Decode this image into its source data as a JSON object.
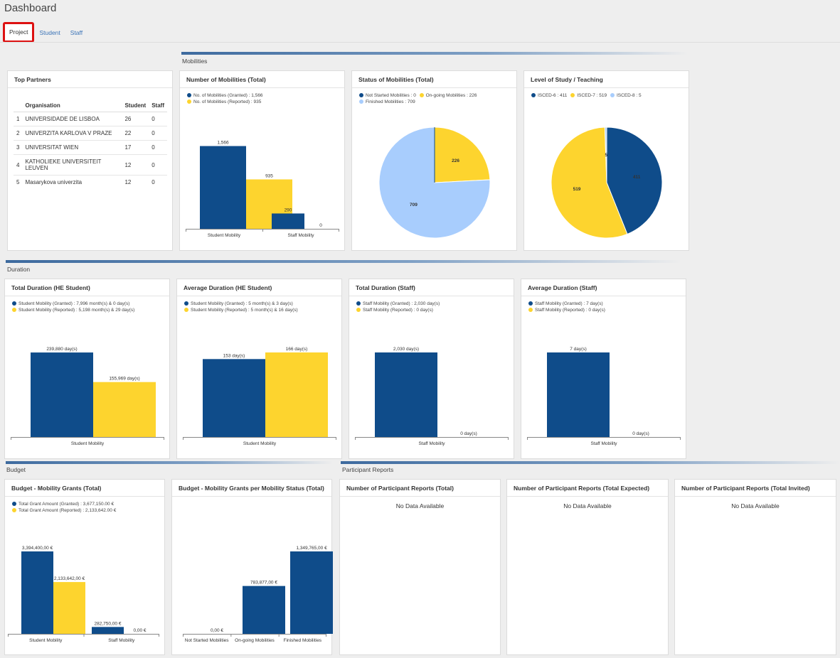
{
  "page": {
    "title": "Dashboard"
  },
  "tabs": [
    {
      "label": "Project",
      "active": true
    },
    {
      "label": "Student",
      "active": false
    },
    {
      "label": "Staff",
      "active": false
    }
  ],
  "sections": {
    "mobilities": "Mobilities",
    "duration": "Duration",
    "budget": "Budget",
    "participant_reports": "Participant Reports"
  },
  "colors": {
    "granted": "#0f4c8a",
    "reported": "#fdd42e",
    "light": "#a8cdfd"
  },
  "top_partners": {
    "title": "Top Partners",
    "columns": [
      "",
      "Organisation",
      "Student",
      "Staff"
    ],
    "rows": [
      [
        "1",
        "UNIVERSIDADE DE LISBOA",
        "26",
        "0"
      ],
      [
        "2",
        "UNIVERZITA KARLOVA V PRAZE",
        "22",
        "0"
      ],
      [
        "3",
        "UNIVERSITAT WIEN",
        "17",
        "0"
      ],
      [
        "4",
        "KATHOLIEKE UNIVERSITEIT LEUVEN",
        "12",
        "0"
      ],
      [
        "5",
        "Masarykova univerzita",
        "12",
        "0"
      ]
    ]
  },
  "charts": {
    "mob_total": {
      "title": "Number of Mobilities (Total)",
      "legend": [
        "No. of Mobilities (Granted) : 1,566",
        "No. of Mobilities (Reported) : 935"
      ]
    },
    "mob_status": {
      "title": "Status of Mobilities (Total)",
      "legend": [
        "Not Started Mobilities : 0",
        "On-going Mobilities : 226",
        "Finished Mobilities : 709"
      ]
    },
    "level": {
      "title": "Level of Study / Teaching",
      "legend": [
        "ISCED-6 : 411",
        "ISCED-7 : 519",
        "ISCED-8 : 5"
      ]
    },
    "dur_he_total": {
      "title": "Total Duration (HE Student)",
      "legend": [
        "Student Mobility (Granted) : 7,996 month(s) & 0 day(s)",
        "Student Mobility (Reported) : 5,198 month(s) & 29 day(s)"
      ]
    },
    "dur_he_avg": {
      "title": "Average Duration (HE Student)",
      "legend": [
        "Student Mobility (Granted) : 5 month(s) & 3 day(s)",
        "Student Mobility (Reported) : 5 month(s) & 16 day(s)"
      ]
    },
    "dur_staff_total": {
      "title": "Total Duration (Staff)",
      "legend": [
        "Staff Mobility (Granted) : 2,030 day(s)",
        "Staff Mobility (Reported) : 0 day(s)"
      ]
    },
    "dur_staff_avg": {
      "title": "Average Duration (Staff)",
      "legend": [
        "Staff Mobility (Granted) : 7 day(s)",
        "Staff Mobility (Reported) : 0 day(s)"
      ]
    },
    "budget_total": {
      "title": "Budget - Mobility Grants (Total)",
      "legend": [
        "Total Grant Amount (Granted) : 3,677,150.00 €",
        "Total Grant Amount (Reported) : 2,133,642.00 €"
      ]
    },
    "budget_status": {
      "title": "Budget - Mobility Grants per Mobility Status (Total)"
    },
    "pr_total": {
      "title": "Number of Participant Reports (Total)",
      "empty": "No Data Available"
    },
    "pr_expected": {
      "title": "Number of Participant Reports (Total Expected)",
      "empty": "No Data Available"
    },
    "pr_invited": {
      "title": "Number of Participant Reports (Total Invited)",
      "empty": "No Data Available"
    }
  },
  "chart_data": [
    {
      "id": "mob_total",
      "type": "bar",
      "categories": [
        "Student Mobility",
        "Staff Mobility"
      ],
      "series": [
        {
          "name": "Granted",
          "values": [
            1566,
            290
          ],
          "labels": [
            "1,566",
            "290"
          ]
        },
        {
          "name": "Reported",
          "values": [
            935,
            0
          ],
          "labels": [
            "935",
            "0"
          ]
        }
      ],
      "ylim": [
        0,
        1600
      ]
    },
    {
      "id": "mob_status",
      "type": "pie",
      "slices": [
        {
          "label": "226",
          "value": 226,
          "color": "#fdd42e"
        },
        {
          "label": "709",
          "value": 709,
          "color": "#a8cdfd"
        },
        {
          "label": "",
          "value": 0,
          "color": "#0f4c8a"
        }
      ]
    },
    {
      "id": "level",
      "type": "pie",
      "slices": [
        {
          "label": "411",
          "value": 411,
          "color": "#0f4c8a"
        },
        {
          "label": "519",
          "value": 519,
          "color": "#fdd42e"
        },
        {
          "label": "5",
          "value": 5,
          "color": "#a8cdfd"
        }
      ]
    },
    {
      "id": "dur_he_total",
      "type": "bar",
      "categories": [
        "Student Mobility"
      ],
      "series": [
        {
          "name": "Granted",
          "values": [
            239880
          ],
          "labels": [
            "239,880 day(s)"
          ]
        },
        {
          "name": "Reported",
          "values": [
            155969
          ],
          "labels": [
            "155,969 day(s)"
          ]
        }
      ],
      "ylim": [
        0,
        240000
      ]
    },
    {
      "id": "dur_he_avg",
      "type": "bar",
      "categories": [
        "Student Mobility"
      ],
      "series": [
        {
          "name": "Granted",
          "values": [
            153
          ],
          "labels": [
            "153 day(s)"
          ]
        },
        {
          "name": "Reported",
          "values": [
            166
          ],
          "labels": [
            "166 day(s)"
          ]
        }
      ],
      "ylim": [
        0,
        166
      ]
    },
    {
      "id": "dur_staff_total",
      "type": "bar",
      "categories": [
        "Staff Mobility"
      ],
      "series": [
        {
          "name": "Granted",
          "values": [
            2030
          ],
          "labels": [
            "2,030 day(s)"
          ]
        },
        {
          "name": "Reported",
          "values": [
            0
          ],
          "labels": [
            "0 day(s)"
          ]
        }
      ],
      "ylim": [
        0,
        2030
      ]
    },
    {
      "id": "dur_staff_avg",
      "type": "bar",
      "categories": [
        "Staff Mobility"
      ],
      "series": [
        {
          "name": "Granted",
          "values": [
            7
          ],
          "labels": [
            "7 day(s)"
          ]
        },
        {
          "name": "Reported",
          "values": [
            0
          ],
          "labels": [
            "0 day(s)"
          ]
        }
      ],
      "ylim": [
        0,
        7
      ]
    },
    {
      "id": "budget_total",
      "type": "bar",
      "categories": [
        "Student Mobility",
        "Staff Mobility"
      ],
      "series": [
        {
          "name": "Granted",
          "values": [
            3394400,
            282750
          ],
          "labels": [
            "3,394,400,00 €",
            "282,750,00 €"
          ]
        },
        {
          "name": "Reported",
          "values": [
            2133642,
            0
          ],
          "labels": [
            "2,133,642,00 €",
            "0,00 €"
          ]
        }
      ],
      "ylim": [
        0,
        3394400
      ]
    },
    {
      "id": "budget_status",
      "type": "bar",
      "categories": [
        "Not Started Mobilities",
        "On-going Mobilities",
        "Finished Mobilities"
      ],
      "series": [
        {
          "name": "Granted",
          "values": [
            0,
            783877,
            1349765
          ],
          "labels": [
            "0,00 €",
            "783,877,00 €",
            "1,349,765,00 €"
          ]
        }
      ],
      "ylim": [
        0,
        1349765
      ]
    }
  ]
}
